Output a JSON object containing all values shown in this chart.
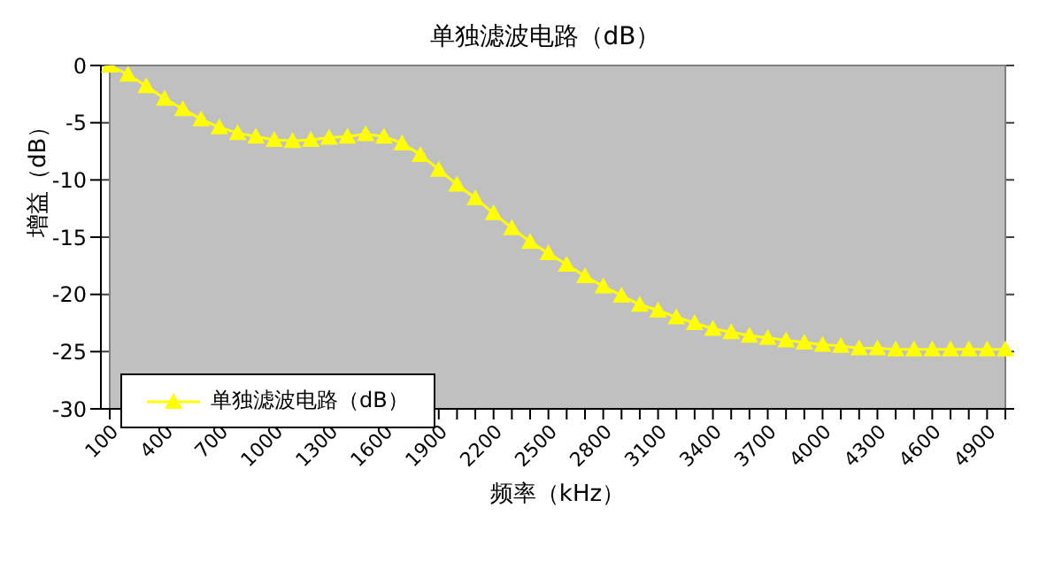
{
  "chart_data": {
    "type": "line",
    "title": "单独滤波电路（dB）",
    "xlabel": "频率（kHz）",
    "ylabel": "增益（dB）",
    "categories": [
      "100",
      null,
      null,
      "400",
      null,
      null,
      "700",
      null,
      null,
      "1000",
      null,
      null,
      "1300",
      null,
      null,
      "1600",
      null,
      null,
      "1900",
      null,
      null,
      "2200",
      null,
      null,
      "2500",
      null,
      null,
      "2800",
      null,
      null,
      "3100",
      null,
      null,
      "3400",
      null,
      null,
      "3700",
      null,
      null,
      "4000",
      null,
      null,
      "4300",
      null,
      null,
      "4600",
      null,
      null,
      "4900",
      null
    ],
    "series": [
      {
        "name": "单独滤波电路（dB）",
        "color": "#ffff00",
        "values": [
          0,
          -0.8,
          -1.8,
          -2.9,
          -3.8,
          -4.7,
          -5.4,
          -5.9,
          -6.2,
          -6.5,
          -6.6,
          -6.5,
          -6.3,
          -6.2,
          -6.0,
          -6.2,
          -6.8,
          -7.8,
          -9.1,
          -10.4,
          -11.6,
          -12.9,
          -14.2,
          -15.4,
          -16.4,
          -17.4,
          -18.4,
          -19.3,
          -20.1,
          -20.9,
          -21.4,
          -22.0,
          -22.5,
          -23.0,
          -23.3,
          -23.6,
          -23.8,
          -24.0,
          -24.2,
          -24.4,
          -24.5,
          -24.7,
          -24.7,
          -24.8,
          -24.8,
          -24.8,
          -24.8,
          -24.8,
          -24.8,
          -24.8
        ]
      }
    ],
    "ylim": [
      -30,
      0
    ],
    "yticks": [
      -30,
      -25,
      -20,
      -15,
      -10,
      -5,
      0
    ],
    "grid": "y",
    "legend": "bottom left",
    "marker": "triangle",
    "line_style": "solid"
  }
}
